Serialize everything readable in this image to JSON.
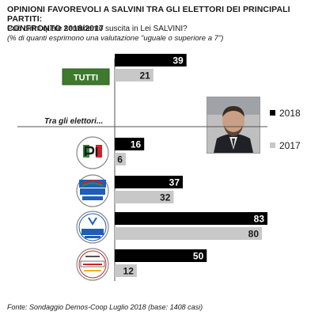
{
  "header": {
    "title_line1": "OPINIONI FAVOREVOLI A SALVINI TRA GLI ELETTORI DEI PRINCIPALI PARTITI:",
    "title_line2": "CONFRONTO 2018/2017",
    "question": "Può dirmi quale sentimento suscita in Lei SALVINI?",
    "note": "(% di quanti esprimono una valutazione \"uguale o superiore a 7\")"
  },
  "legend": {
    "items": [
      {
        "label": "2018",
        "color": "#000000"
      },
      {
        "label": "2017",
        "color": "#c8c8c8"
      }
    ]
  },
  "section_label": "Tra gli elettori...",
  "source": "Fonte: Sondaggio Demos-Coop Luglio 2018 (base: 1408 casi)",
  "colors": {
    "bar_2018": "#000000",
    "bar_2017": "#c8c8c8",
    "tutti_box": "#3d7a2e",
    "value_2018_text": "#ffffff",
    "value_2017_text": "#1a1a1a"
  },
  "chart_data": {
    "type": "bar",
    "orientation": "horizontal",
    "categories": [
      "TUTTI",
      "PD",
      "Forza Italia",
      "Lega",
      "MoVimento 5 Stelle"
    ],
    "category_display": [
      "TUTTI",
      "PD",
      "FORZA ITALIA BERLUSCONI PRESIDENTE",
      "LEGA SALVINI PREMIER",
      "MOVIMENTO 5 STELLE"
    ],
    "series": [
      {
        "name": "2018",
        "values": [
          39,
          16,
          37,
          83,
          50
        ]
      },
      {
        "name": "2017",
        "values": [
          21,
          6,
          32,
          80,
          12
        ]
      }
    ],
    "xlim": [
      0,
      90
    ],
    "legend_position": "right",
    "grid": false
  }
}
